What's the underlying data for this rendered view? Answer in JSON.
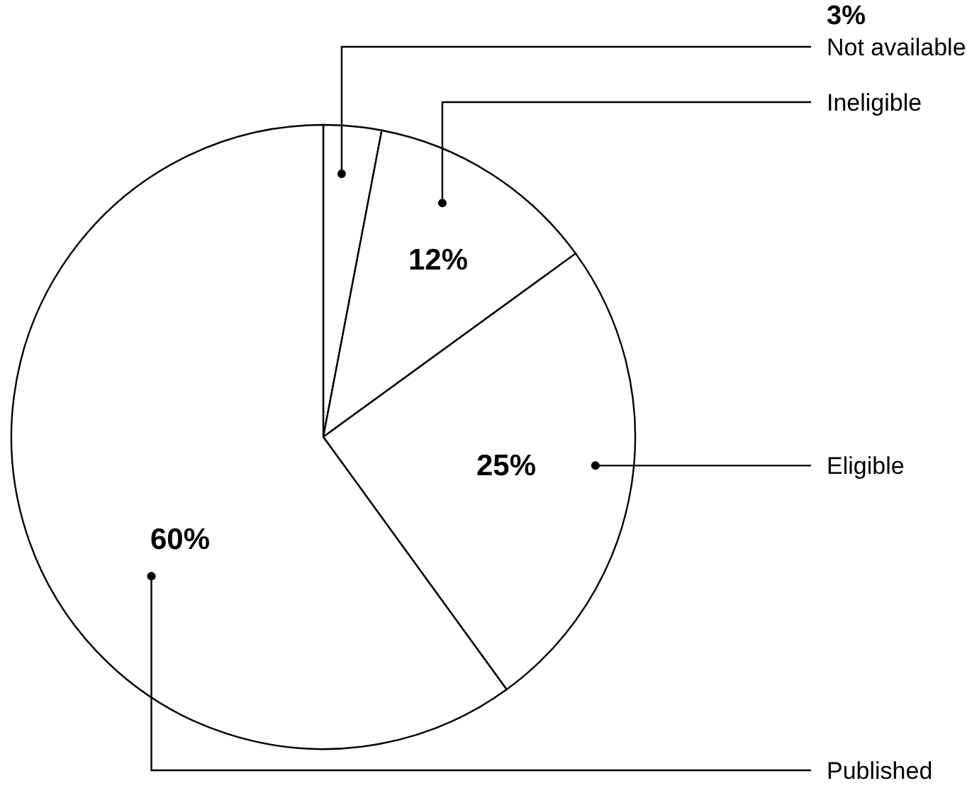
{
  "chart_data": {
    "type": "pie",
    "categories": [
      "Not available",
      "Ineligible",
      "Eligible",
      "Published"
    ],
    "values": [
      3,
      12,
      25,
      60
    ],
    "colors": [
      "#ffffff",
      "#ffffff",
      "#ffffff",
      "#ffffff"
    ],
    "value_labels": [
      "3%",
      "12%",
      "25%",
      "60%"
    ]
  }
}
